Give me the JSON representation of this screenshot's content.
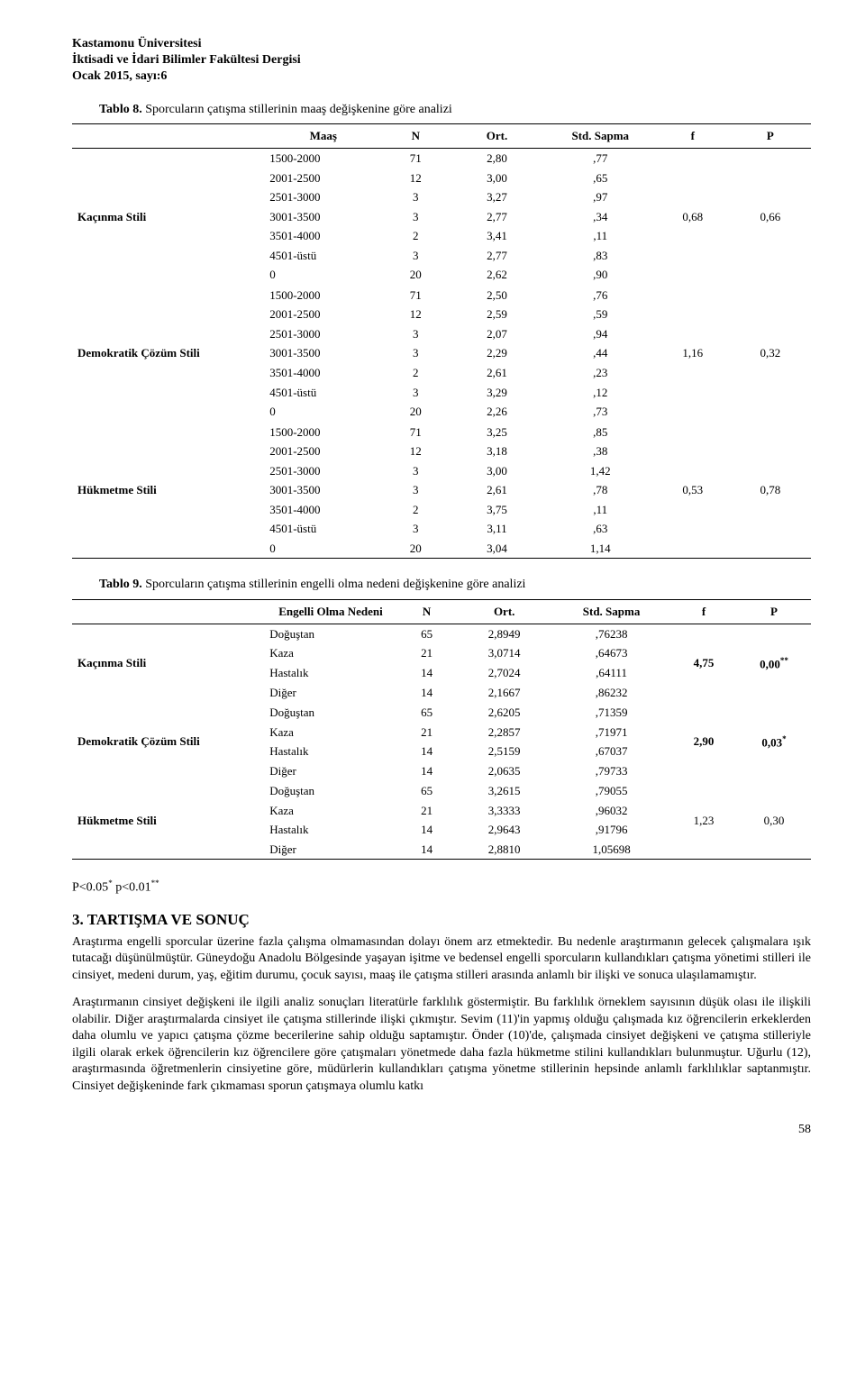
{
  "header": {
    "line1": "Kastamonu Üniversitesi",
    "line2": "İktisadi ve İdari Bilimler Fakültesi Dergisi",
    "line3": "Ocak 2015, sayı:6"
  },
  "table8": {
    "title_prefix": "Tablo 8.",
    "title_rest": " Sporcuların çatışma stillerinin maaş değişkenine göre analizi",
    "columns": [
      "",
      "Maaş",
      "N",
      "Ort.",
      "Std. Sapma",
      "f",
      "P"
    ],
    "groups": [
      {
        "label": "Kaçınma Stili",
        "f": "0,68",
        "p": "0,66",
        "rows": [
          [
            "1500-2000",
            "71",
            "2,80",
            ",77"
          ],
          [
            "2001-2500",
            "12",
            "3,00",
            ",65"
          ],
          [
            "2501-3000",
            "3",
            "3,27",
            ",97"
          ],
          [
            "3001-3500",
            "3",
            "2,77",
            ",34"
          ],
          [
            "3501-4000",
            "2",
            "3,41",
            ",11"
          ],
          [
            "4501-üstü",
            "3",
            "2,77",
            ",83"
          ],
          [
            "0",
            "20",
            "2,62",
            ",90"
          ]
        ]
      },
      {
        "label": "Demokratik Çözüm Stili",
        "f": "1,16",
        "p": "0,32",
        "rows": [
          [
            "1500-2000",
            "71",
            "2,50",
            ",76"
          ],
          [
            "2001-2500",
            "12",
            "2,59",
            ",59"
          ],
          [
            "2501-3000",
            "3",
            "2,07",
            ",94"
          ],
          [
            "3001-3500",
            "3",
            "2,29",
            ",44"
          ],
          [
            "3501-4000",
            "2",
            "2,61",
            ",23"
          ],
          [
            "4501-üstü",
            "3",
            "3,29",
            ",12"
          ],
          [
            "0",
            "20",
            "2,26",
            ",73"
          ]
        ]
      },
      {
        "label": "Hükmetme Stili",
        "f": "0,53",
        "p": "0,78",
        "rows": [
          [
            "1500-2000",
            "71",
            "3,25",
            ",85"
          ],
          [
            "2001-2500",
            "12",
            "3,18",
            ",38"
          ],
          [
            "2501-3000",
            "3",
            "3,00",
            "1,42"
          ],
          [
            "3001-3500",
            "3",
            "2,61",
            ",78"
          ],
          [
            "3501-4000",
            "2",
            "3,75",
            ",11"
          ],
          [
            "4501-üstü",
            "3",
            "3,11",
            ",63"
          ],
          [
            "0",
            "20",
            "3,04",
            "1,14"
          ]
        ]
      }
    ]
  },
  "table9": {
    "title_prefix": "Tablo 9.",
    "title_rest": " Sporcuların çatışma stillerinin engelli olma nedeni değişkenine göre analizi",
    "columns": [
      "",
      "Engelli Olma Nedeni",
      "N",
      "Ort.",
      "Std. Sapma",
      "f",
      "P"
    ],
    "groups": [
      {
        "label": "Kaçınma Stili",
        "f": "4,75",
        "p": "0,00**",
        "p_plain": "0,00",
        "p_sup": "**",
        "rows": [
          [
            "Doğuştan",
            "65",
            "2,8949",
            ",76238"
          ],
          [
            "Kaza",
            "21",
            "3,0714",
            ",64673"
          ],
          [
            "Hastalık",
            "14",
            "2,7024",
            ",64111"
          ],
          [
            "Diğer",
            "14",
            "2,1667",
            ",86232"
          ]
        ]
      },
      {
        "label": "Demokratik Çözüm Stili",
        "f": "2,90",
        "p": "0,03*",
        "p_plain": "0,03",
        "p_sup": "*",
        "rows": [
          [
            "Doğuştan",
            "65",
            "2,6205",
            ",71359"
          ],
          [
            "Kaza",
            "21",
            "2,2857",
            ",71971"
          ],
          [
            "Hastalık",
            "14",
            "2,5159",
            ",67037"
          ],
          [
            "Diğer",
            "14",
            "2,0635",
            ",79733"
          ]
        ]
      },
      {
        "label": "Hükmetme Stili",
        "f": "1,23",
        "p": "0,30",
        "p_plain": "0,30",
        "p_sup": "",
        "rows": [
          [
            "Doğuştan",
            "65",
            "3,2615",
            ",79055"
          ],
          [
            "Kaza",
            "21",
            "3,3333",
            ",96032"
          ],
          [
            "Hastalık",
            "14",
            "2,9643",
            ",91796"
          ],
          [
            "Diğer",
            "14",
            "2,8810",
            "1,05698"
          ]
        ]
      }
    ]
  },
  "sig_note": {
    "text1": "P<0.05",
    "sup1": "*",
    "text2": " p<0.01",
    "sup2": "**"
  },
  "section": {
    "heading": "3. TARTIŞMA VE SONUÇ",
    "p1": "Araştırma engelli sporcular üzerine fazla çalışma olmamasından dolayı önem arz etmektedir. Bu nedenle araştırmanın gelecek çalışmalara ışık tutacağı düşünülmüştür. Güneydoğu Anadolu Bölgesinde yaşayan işitme ve bedensel engelli sporcuların kullandıkları çatışma yönetimi stilleri ile cinsiyet, medeni durum, yaş, eğitim durumu, çocuk sayısı, maaş ile çatışma stilleri arasında anlamlı bir ilişki ve sonuca ulaşılamamıştır.",
    "p2": "Araştırmanın cinsiyet değişkeni ile ilgili analiz sonuçları literatürle farklılık göstermiştir. Bu farklılık örneklem sayısının düşük olası ile ilişkili olabilir. Diğer araştırmalarda cinsiyet ile çatışma stillerinde ilişki çıkmıştır. Sevim (11)'in yapmış olduğu çalışmada kız öğrencilerin erkeklerden daha olumlu ve yapıcı çatışma çözme becerilerine sahip olduğu saptamıştır. Önder (10)'de, çalışmada cinsiyet değişkeni ve çatışma stilleriyle ilgili olarak erkek öğrencilerin kız öğrencilere göre çatışmaları yönetmede daha fazla hükmetme stilini kullandıkları bulunmuştur. Uğurlu (12), araştırmasında öğretmenlerin cinsiyetine göre, müdürlerin kullandıkları çatışma yönetme stillerinin hepsinde anlamlı farklılıklar saptanmıştır. Cinsiyet değişkeninde fark çıkmaması sporun çatışmaya olumlu katkı"
  },
  "page_number": "58",
  "col_widths": {
    "table8": [
      "26%",
      "16%",
      "9%",
      "13%",
      "15%",
      "10%",
      "11%"
    ],
    "table9": [
      "26%",
      "18%",
      "8%",
      "13%",
      "16%",
      "9%",
      "10%"
    ]
  }
}
